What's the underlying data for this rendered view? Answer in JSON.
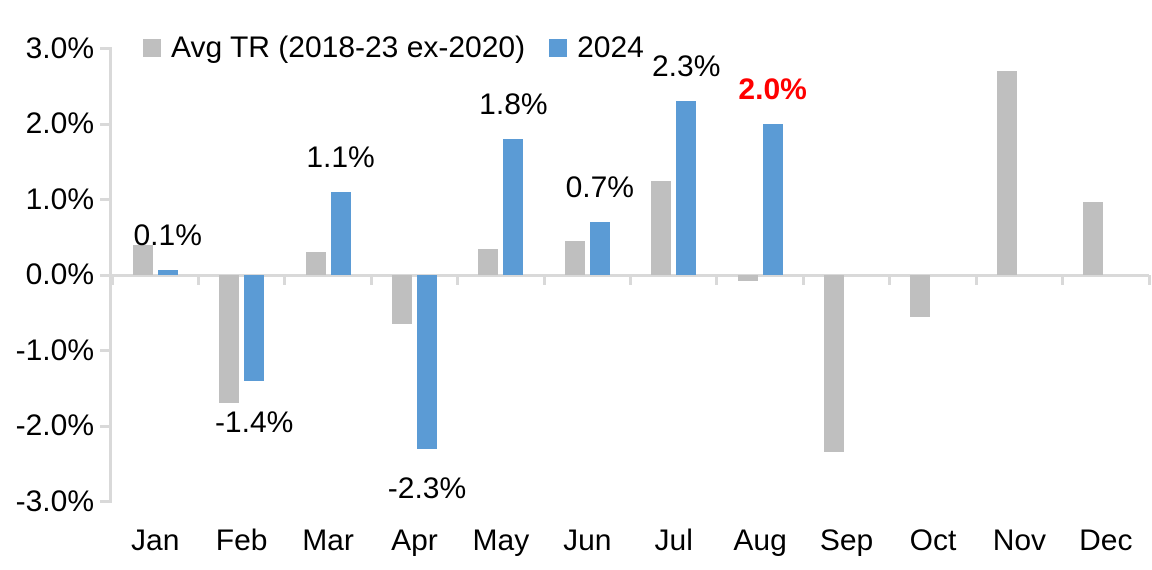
{
  "chart_data": {
    "type": "bar",
    "categories": [
      "Jan",
      "Feb",
      "Mar",
      "Apr",
      "May",
      "Jun",
      "Jul",
      "Aug",
      "Sep",
      "Oct",
      "Nov",
      "Dec"
    ],
    "series": [
      {
        "name": "Avg TR (2018-23 ex-2020)",
        "color": "#BFBFBF",
        "values": [
          0.4,
          -1.7,
          0.3,
          -0.65,
          0.35,
          0.45,
          1.25,
          -0.08,
          -2.35,
          -0.55,
          2.7,
          0.97
        ]
      },
      {
        "name": "2024",
        "color": "#5B9BD5",
        "values": [
          0.06,
          -1.4,
          1.1,
          -2.3,
          1.8,
          0.7,
          2.3,
          2.0,
          null,
          null,
          null,
          null
        ]
      }
    ],
    "annotations": [
      {
        "category": "Jan",
        "text": "0.1%",
        "color": "#000000",
        "bold": false,
        "side": "above",
        "dy": -14
      },
      {
        "category": "Feb",
        "text": "-1.4%",
        "color": "#000000",
        "bold": false,
        "side": "below",
        "dy": 0
      },
      {
        "category": "Mar",
        "text": "1.1%",
        "color": "#000000",
        "bold": false,
        "side": "above",
        "dy": -14
      },
      {
        "category": "Apr",
        "text": "-2.3%",
        "color": "#000000",
        "bold": false,
        "side": "below",
        "dy": 20
      },
      {
        "category": "May",
        "text": "1.8%",
        "color": "#000000",
        "bold": false,
        "side": "above",
        "dy": -14
      },
      {
        "category": "Jun",
        "text": "0.7%",
        "color": "#000000",
        "bold": false,
        "side": "above",
        "dy": -14
      },
      {
        "category": "Jul",
        "text": "2.3%",
        "color": "#000000",
        "bold": false,
        "side": "above",
        "dy": -14
      },
      {
        "category": "Aug",
        "text": "2.0%",
        "color": "#FF0000",
        "bold": true,
        "side": "above",
        "dy": -14
      }
    ],
    "yticks": [
      "3.0%",
      "2.0%",
      "1.0%",
      "0.0%",
      "-1.0%",
      "-2.0%",
      "-3.0%"
    ],
    "ytick_values": [
      3,
      2,
      1,
      0,
      -1,
      -2,
      -3
    ],
    "ylim": [
      -3,
      3
    ],
    "grid": false,
    "legend_position": "top",
    "axis_color": "#D9D9D9",
    "text_color": "#000000",
    "highlight_color": "#FF0000"
  }
}
